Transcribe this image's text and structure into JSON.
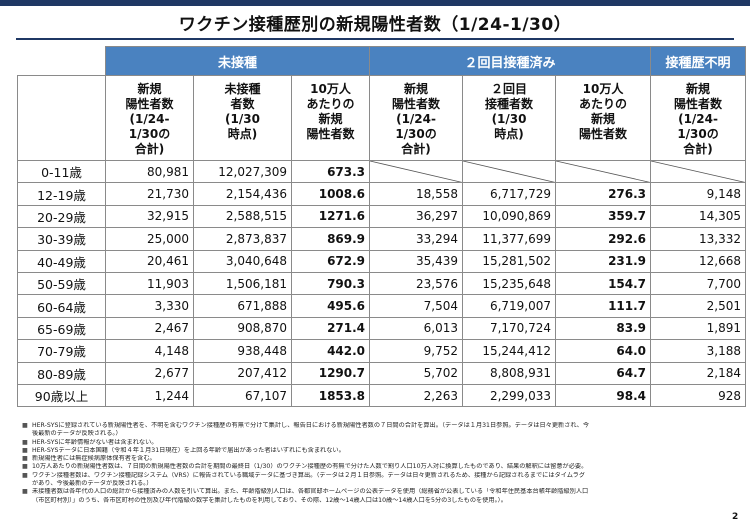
{
  "title": "ワクチン接種歴別の新規陽性者数（1/24-1/30）",
  "groups": {
    "unvaccinated": "未接種",
    "two_doses": "２回目接種済み",
    "unknown": "接種歴不明"
  },
  "subheaders": {
    "unvac_cases": [
      "新規",
      "陽性者数",
      "(1/24-",
      "1/30の",
      "合計)"
    ],
    "unvac_pop": [
      "未接種",
      "者数",
      "(1/30",
      "時点)"
    ],
    "unvac_rate": [
      "10万人",
      "あたりの",
      "新規",
      "陽性者数"
    ],
    "vac_cases": [
      "新規",
      "陽性者数",
      "(1/24-",
      "1/30の",
      "合計)"
    ],
    "vac_pop": [
      "２回目",
      "接種者数",
      "(1/30",
      "時点)"
    ],
    "vac_rate": [
      "10万人",
      "あたりの",
      "新規",
      "陽性者数"
    ],
    "unknown_cases": [
      "新規",
      "陽性者数",
      "(1/24-",
      "1/30の",
      "合計)"
    ]
  },
  "rows": [
    [
      "0-11歳",
      "80,981",
      "12,027,309",
      "673.3",
      "",
      "",
      "",
      ""
    ],
    [
      "12-19歳",
      "21,730",
      "2,154,436",
      "1008.6",
      "18,558",
      "6,717,729",
      "276.3",
      "9,148"
    ],
    [
      "20-29歳",
      "32,915",
      "2,588,515",
      "1271.6",
      "36,297",
      "10,090,869",
      "359.7",
      "14,305"
    ],
    [
      "30-39歳",
      "25,000",
      "2,873,837",
      "869.9",
      "33,294",
      "11,377,699",
      "292.6",
      "13,332"
    ],
    [
      "40-49歳",
      "20,461",
      "3,040,648",
      "672.9",
      "35,439",
      "15,281,502",
      "231.9",
      "12,668"
    ],
    [
      "50-59歳",
      "11,903",
      "1,506,181",
      "790.3",
      "23,576",
      "15,235,648",
      "154.7",
      "7,700"
    ],
    [
      "60-64歳",
      "3,330",
      "671,888",
      "495.6",
      "7,504",
      "6,719,007",
      "111.7",
      "2,501"
    ],
    [
      "65-69歳",
      "2,467",
      "908,870",
      "271.4",
      "6,013",
      "7,170,724",
      "83.9",
      "1,891"
    ],
    [
      "70-79歳",
      "4,148",
      "938,448",
      "442.0",
      "9,752",
      "15,244,412",
      "64.0",
      "3,188"
    ],
    [
      "80-89歳",
      "2,677",
      "207,412",
      "1290.7",
      "5,702",
      "8,808,931",
      "64.7",
      "2,184"
    ],
    [
      "90歳以上",
      "1,244",
      "67,107",
      "1853.8",
      "2,263",
      "2,299,033",
      "98.4",
      "928"
    ]
  ],
  "notes": [
    "HER-SYSに登録されている新規陽性者を、不明を含むワクチン接種歴の有無で分けて集計し、報告日における新規陽性者数の７日間の合計を算出。（データは１月31日参照。データは日々更新され、今",
    "後最新のデータが反映される。）",
    "HER-SYSに年齢情報がない者は含まれない。",
    "HER-SYSデータに日本国籍（令和４年１月31日現在）を上回る年齢で届出があった者はいずれにも含まれない。",
    "新規陽性者には無症候病原体保有者を含む。",
    "10万人あたりの新規陽性者数は、７日間の新規陽性者数の合計を期間の最終日（1/30）のワクチン接種歴の有無で分けた人数で割り人口10万人対に換算したものであり、結果の解釈には留意が必要。",
    "ワクチン接種者数は、ワクチン接種記録システム（VRS）に報告されている職域データに基づき算出。（データは２月１日参照。データは日々更新されるため、接種から記録されるまでにはタイムラグ",
    "があり、今後最新のデータが反映される。）",
    "未接種者数は各年代の人口の総計から接種済みの人数を引いて算出。また、年齢階級別人口は、各都官邸ホームページの公表データを使用（総務省が公表している「令和年住民基本台帳年齢階級別人口",
    "（市区町村別）」のうち、各市区町村の性別及び年代階級の数字を集計したものを利用しており、その際、12歳～14歳人口は10歳～14歳人口を5分の3したものを使用。）。"
  ],
  "note_markers": [
    "■",
    "",
    "■",
    "■",
    "■",
    "■",
    "■",
    "",
    "■",
    ""
  ],
  "page_number": "2"
}
